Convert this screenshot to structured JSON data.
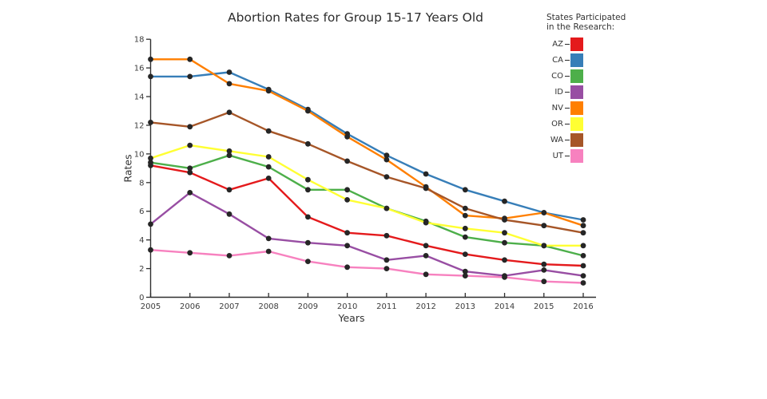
{
  "chart_data": {
    "type": "line",
    "title": "Abortion Rates for Group 15-17 Years Old",
    "xlabel": "Years",
    "ylabel": "Rates",
    "legend_title_lines": [
      "States Participated",
      "in the Research:"
    ],
    "x": [
      2005,
      2006,
      2007,
      2008,
      2009,
      2010,
      2011,
      2012,
      2013,
      2014,
      2015,
      2016
    ],
    "ylim": [
      0,
      18
    ],
    "yticks": [
      0,
      2,
      4,
      6,
      8,
      10,
      12,
      14,
      16,
      18
    ],
    "grid": false,
    "legend_position": "top-right",
    "marker_color": "#262626",
    "axis_color": "#2f2f2f",
    "series": [
      {
        "name": "AZ",
        "color": "#e41a1c",
        "values": [
          9.2,
          8.7,
          7.5,
          8.3,
          5.6,
          4.5,
          4.3,
          3.6,
          3.0,
          2.6,
          2.3,
          2.2
        ]
      },
      {
        "name": "CA",
        "color": "#377eb8",
        "values": [
          15.4,
          15.4,
          15.7,
          14.5,
          13.1,
          11.4,
          9.9,
          8.6,
          7.5,
          6.7,
          5.9,
          5.4
        ]
      },
      {
        "name": "CO",
        "color": "#4daf4a",
        "values": [
          9.4,
          9.0,
          9.9,
          9.1,
          7.5,
          7.5,
          6.2,
          5.3,
          4.2,
          3.8,
          3.6,
          2.9
        ]
      },
      {
        "name": "ID",
        "color": "#984ea3",
        "values": [
          5.1,
          7.3,
          5.8,
          4.1,
          3.8,
          3.6,
          2.6,
          2.9,
          1.8,
          1.5,
          1.9,
          1.5
        ]
      },
      {
        "name": "NV",
        "color": "#ff7f00",
        "values": [
          16.6,
          16.6,
          14.9,
          14.4,
          13.0,
          11.2,
          9.6,
          7.7,
          5.7,
          5.5,
          5.9,
          5.0
        ]
      },
      {
        "name": "OR",
        "color": "#ffff33",
        "values": [
          9.7,
          10.6,
          10.2,
          9.8,
          8.2,
          6.8,
          6.2,
          5.2,
          4.8,
          4.5,
          3.6,
          3.6
        ]
      },
      {
        "name": "WA",
        "color": "#a65628",
        "values": [
          12.2,
          11.9,
          12.9,
          11.6,
          10.7,
          9.5,
          8.4,
          7.6,
          6.2,
          5.4,
          5.0,
          4.5
        ]
      },
      {
        "name": "UT",
        "color": "#f781bf",
        "values": [
          3.3,
          3.1,
          2.9,
          3.2,
          2.5,
          2.1,
          2.0,
          1.6,
          1.5,
          1.4,
          1.1,
          1.0
        ]
      }
    ]
  }
}
